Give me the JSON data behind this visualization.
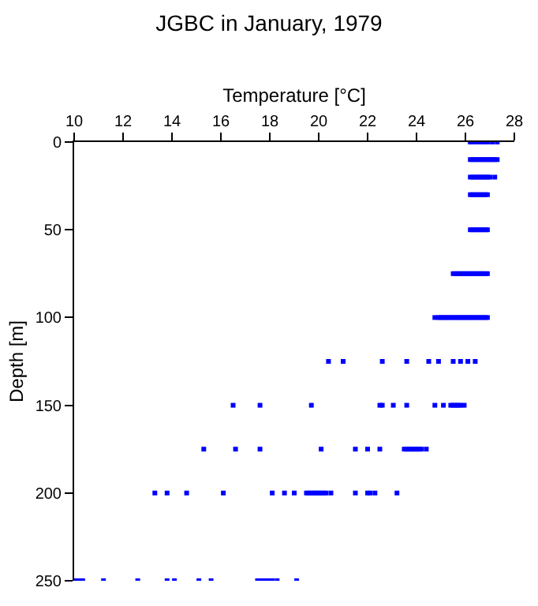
{
  "chart_data": {
    "type": "scatter",
    "title": "JGBC in January, 1979",
    "xlabel": "Temperature [°C]",
    "ylabel": "Depth [m]",
    "xlim": [
      10,
      28
    ],
    "xticks": [
      10,
      12,
      14,
      16,
      18,
      20,
      22,
      24,
      26,
      28
    ],
    "ylim": [
      250,
      0
    ],
    "yticks": [
      0,
      50,
      100,
      150,
      200,
      250
    ],
    "marker": "square",
    "series": [
      {
        "color": "#0000ff",
        "x": [
          26.2,
          26.3,
          26.4,
          26.5,
          26.6,
          26.7,
          26.8,
          26.9,
          27.1,
          27.3,
          26.2,
          26.3,
          26.4,
          26.5,
          26.6,
          26.7,
          26.8,
          26.9,
          27.0,
          27.1,
          27.2,
          27.3,
          26.2,
          26.3,
          26.4,
          26.5,
          26.6,
          26.7,
          26.8,
          26.9,
          27.0,
          27.2,
          26.2,
          26.3,
          26.4,
          26.5,
          26.6,
          26.7,
          26.8,
          26.9,
          26.2,
          26.3,
          26.4,
          26.5,
          26.6,
          26.7,
          26.8,
          26.9,
          25.5,
          25.6,
          25.7,
          25.8,
          25.9,
          26.0,
          26.1,
          26.2,
          26.3,
          26.4,
          26.5,
          26.6,
          26.7,
          26.8,
          26.9,
          24.75,
          24.9,
          25.0,
          25.1,
          25.2,
          25.3,
          25.4,
          25.5,
          25.6,
          25.7,
          25.8,
          25.9,
          26.0,
          26.1,
          26.2,
          26.3,
          26.4,
          26.5,
          26.6,
          26.7,
          26.8,
          26.9,
          20.4,
          21.0,
          22.6,
          23.6,
          24.5,
          24.9,
          25.5,
          25.8,
          26.1,
          26.4,
          16.5,
          17.6,
          19.7,
          22.5,
          22.6,
          23.05,
          23.6,
          24.75,
          25.1,
          25.4,
          25.5,
          25.6,
          25.7,
          25.8,
          25.95,
          15.3,
          16.6,
          17.6,
          20.1,
          21.5,
          22.0,
          22.5,
          23.5,
          23.6,
          23.7,
          23.8,
          23.9,
          24.0,
          24.1,
          24.2,
          24.4,
          13.3,
          13.8,
          14.6,
          16.1,
          18.1,
          18.6,
          19.0,
          19.5,
          19.6,
          19.7,
          19.8,
          19.9,
          20.0,
          20.1,
          20.2,
          20.3,
          20.5,
          21.5,
          22.0,
          22.1,
          22.3,
          23.2,
          10.0,
          10.1,
          10.2,
          10.35,
          11.2,
          12.6,
          13.8,
          14.1,
          15.1,
          15.6,
          17.5,
          17.6,
          17.7,
          17.8,
          17.9,
          18.0,
          18.1,
          18.3,
          19.1
        ],
        "values": [
          0,
          0,
          0,
          0,
          0,
          0,
          0,
          0,
          0,
          0,
          10,
          10,
          10,
          10,
          10,
          10,
          10,
          10,
          10,
          10,
          10,
          10,
          20,
          20,
          20,
          20,
          20,
          20,
          20,
          20,
          20,
          20,
          30,
          30,
          30,
          30,
          30,
          30,
          30,
          30,
          50,
          50,
          50,
          50,
          50,
          50,
          50,
          50,
          75,
          75,
          75,
          75,
          75,
          75,
          75,
          75,
          75,
          75,
          75,
          75,
          75,
          75,
          75,
          100,
          100,
          100,
          100,
          100,
          100,
          100,
          100,
          100,
          100,
          100,
          100,
          100,
          100,
          100,
          100,
          100,
          100,
          100,
          100,
          100,
          100,
          125,
          125,
          125,
          125,
          125,
          125,
          125,
          125,
          125,
          125,
          150,
          150,
          150,
          150,
          150,
          150,
          150,
          150,
          150,
          150,
          150,
          150,
          150,
          150,
          150,
          175,
          175,
          175,
          175,
          175,
          175,
          175,
          175,
          175,
          175,
          175,
          175,
          175,
          175,
          175,
          175,
          200,
          200,
          200,
          200,
          200,
          200,
          200,
          200,
          200,
          200,
          200,
          200,
          200,
          200,
          200,
          200,
          200,
          200,
          200,
          200,
          200,
          200,
          250,
          250,
          250,
          250,
          250,
          250,
          250,
          250,
          250,
          250,
          250,
          250,
          250,
          250,
          250,
          250,
          250,
          250,
          250
        ]
      }
    ]
  }
}
